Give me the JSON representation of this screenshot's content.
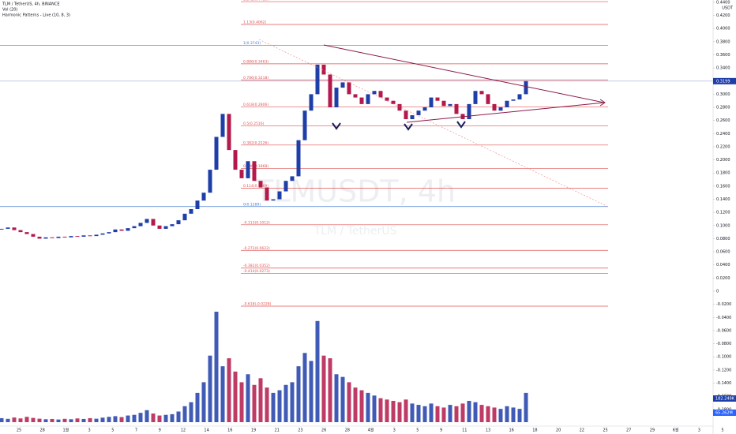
{
  "header": {
    "symbol": "TLM / TetherUS, 4h, BINANCE",
    "volume_indicator": "Vol (20)",
    "pattern_indicator": "Harmonic Patterns - Live (10, 8, 3)",
    "currency": "USDT"
  },
  "watermark": {
    "ticker": "TLMUSDT, 4h",
    "name": "TLM / TetherUS"
  },
  "chart_data": {
    "type": "candlestick",
    "up_color": "#1e3ea8",
    "down_color": "#b3194a",
    "ylim": [
      -0.2055,
      0.4435
    ],
    "yticks": [
      {
        "value": 0.44,
        "label": "0.4400"
      },
      {
        "value": 0.42,
        "label": "0.4200"
      },
      {
        "value": 0.4,
        "label": "0.4000"
      },
      {
        "value": 0.38,
        "label": "0.3800"
      },
      {
        "value": 0.36,
        "label": "0.3600"
      },
      {
        "value": 0.34,
        "label": "0.3400"
      },
      {
        "value": 0.32,
        "label": "0.3200"
      },
      {
        "value": 0.3,
        "label": "0.3000"
      },
      {
        "value": 0.28,
        "label": "0.2800"
      },
      {
        "value": 0.26,
        "label": "0.2600"
      },
      {
        "value": 0.24,
        "label": "0.2400"
      },
      {
        "value": 0.22,
        "label": "0.2200"
      },
      {
        "value": 0.2,
        "label": "0.2000"
      },
      {
        "value": 0.18,
        "label": "0.1800"
      },
      {
        "value": 0.16,
        "label": "0.1600"
      },
      {
        "value": 0.14,
        "label": "0.1400"
      },
      {
        "value": 0.12,
        "label": "0.1200"
      },
      {
        "value": 0.1,
        "label": "0.1000"
      },
      {
        "value": 0.08,
        "label": "0.0800"
      },
      {
        "value": 0.06,
        "label": "0.0600"
      },
      {
        "value": 0.04,
        "label": "0.0400"
      },
      {
        "value": 0.02,
        "label": "0.0200"
      },
      0,
      {
        "value": -0.02,
        "label": "-0.0200"
      },
      {
        "value": -0.04,
        "label": "-0.0400"
      },
      {
        "value": -0.06,
        "label": "-0.0600"
      },
      {
        "value": -0.08,
        "label": "-0.0800"
      },
      {
        "value": -0.1,
        "label": "-0.1000"
      },
      {
        "value": -0.12,
        "label": "-0.1200"
      },
      {
        "value": -0.14,
        "label": "-0.1400"
      },
      {
        "value": -0.16,
        "label": "-0.1600"
      },
      {
        "value": -0.18,
        "label": "-0.1800"
      }
    ],
    "x_labels": [
      "25",
      "28",
      "1월",
      "3",
      "5",
      "7",
      "9",
      "12",
      "14",
      "16",
      "19",
      "21",
      "23",
      "26",
      "28",
      "4월",
      "3",
      "5",
      "9",
      "11",
      "13",
      "16",
      "18",
      "20",
      "22",
      "25",
      "27",
      "29",
      "6월",
      "3",
      "5"
    ],
    "closes": [
      0.095,
      0.097,
      0.093,
      0.09,
      0.087,
      0.083,
      0.08,
      0.082,
      0.081,
      0.083,
      0.082,
      0.084,
      0.083,
      0.085,
      0.084,
      0.086,
      0.088,
      0.09,
      0.094,
      0.092,
      0.096,
      0.099,
      0.104,
      0.11,
      0.1,
      0.095,
      0.099,
      0.102,
      0.108,
      0.118,
      0.125,
      0.138,
      0.15,
      0.185,
      0.235,
      0.27,
      0.215,
      0.185,
      0.172,
      0.198,
      0.168,
      0.158,
      0.138,
      0.14,
      0.152,
      0.168,
      0.175,
      0.23,
      0.275,
      0.3,
      0.345,
      0.33,
      0.28,
      0.31,
      0.318,
      0.3,
      0.295,
      0.285,
      0.3,
      0.305,
      0.295,
      0.29,
      0.285,
      0.275,
      0.262,
      0.268,
      0.275,
      0.28,
      0.295,
      0.29,
      0.282,
      0.285,
      0.27,
      0.262,
      0.285,
      0.305,
      0.3,
      0.285,
      0.275,
      0.28,
      0.29,
      0.292,
      0.3,
      0.32
    ],
    "volumes": [
      30,
      25,
      35,
      28,
      40,
      32,
      26,
      22,
      24,
      20,
      25,
      22,
      28,
      24,
      30,
      26,
      34,
      40,
      45,
      38,
      50,
      55,
      70,
      90,
      65,
      50,
      55,
      60,
      80,
      120,
      150,
      220,
      300,
      500,
      830,
      420,
      480,
      380,
      300,
      360,
      280,
      330,
      260,
      220,
      240,
      280,
      300,
      420,
      520,
      460,
      760,
      500,
      480,
      360,
      340,
      300,
      260,
      240,
      220,
      200,
      180,
      170,
      160,
      150,
      170,
      140,
      130,
      120,
      140,
      120,
      110,
      130,
      120,
      140,
      160,
      150,
      130,
      120,
      110,
      100,
      120,
      110,
      100,
      220
    ],
    "last_price": {
      "value": 0.3199,
      "label": "0.3199"
    },
    "volume_labels": [
      "182.249K",
      "65.262M"
    ],
    "fib_levels": [
      {
        "label": "1.272(0.4410)",
        "value": 0.441,
        "color": "#e05252"
      },
      {
        "label": "1.13(0.4062)",
        "value": 0.4062,
        "color": "#e05252"
      },
      {
        "label": "1(0.3743)",
        "value": 0.3743,
        "color": "#4a7fd4"
      },
      {
        "label": "0.886(0.3463)",
        "value": 0.3463,
        "color": "#e05252"
      },
      {
        "label": "0.786(0.3218)",
        "value": 0.3218,
        "color": "#e05252"
      },
      {
        "label": "0.618(0.2806)",
        "value": 0.2806,
        "color": "#e05252"
      },
      {
        "label": "0.5(0.2516)",
        "value": 0.2516,
        "color": "#e05252"
      },
      {
        "label": "0.382(0.2226)",
        "value": 0.2226,
        "color": "#e05252"
      },
      {
        "label": "0.236(0.1868)",
        "value": 0.1868,
        "color": "#e05252"
      },
      {
        "label": "0.114(0.1569)",
        "value": 0.1569,
        "color": "#e05252"
      },
      {
        "label": "0(0.1289)",
        "value": 0.1289,
        "color": "#4a7fd4"
      },
      {
        "label": "-0.113(0.1012)",
        "value": 0.1012,
        "color": "#e05252"
      },
      {
        "label": "-0.272(0.0622)",
        "value": 0.0622,
        "color": "#e05252"
      },
      {
        "label": "-0.382(0.0352)",
        "value": 0.0352,
        "color": "#e05252"
      },
      {
        "label": "-0.414(0.0273)",
        "value": 0.0273,
        "color": "#e05252"
      },
      {
        "label": "-0.618(-0.0228)",
        "value": -0.0228,
        "color": "#e05252"
      }
    ]
  }
}
